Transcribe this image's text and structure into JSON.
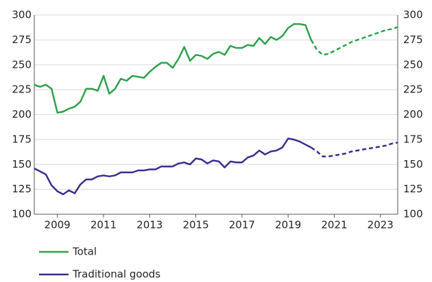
{
  "chart_data": {
    "type": "line",
    "x": [
      2008,
      2008.25,
      2008.5,
      2008.75,
      2009,
      2009.25,
      2009.5,
      2009.75,
      2010,
      2010.25,
      2010.5,
      2010.75,
      2011,
      2011.25,
      2011.5,
      2011.75,
      2012,
      2012.25,
      2012.5,
      2012.75,
      2013,
      2013.25,
      2013.5,
      2013.75,
      2014,
      2014.25,
      2014.5,
      2014.75,
      2015,
      2015.25,
      2015.5,
      2015.75,
      2016,
      2016.25,
      2016.5,
      2016.75,
      2017,
      2017.25,
      2017.5,
      2017.75,
      2018,
      2018.25,
      2018.5,
      2018.75,
      2019,
      2019.25,
      2019.5,
      2019.75,
      2020,
      2020.25,
      2020.5,
      2020.75,
      2021,
      2021.25,
      2021.5,
      2021.75,
      2022,
      2022.25,
      2022.5,
      2022.75,
      2023,
      2023.25,
      2023.5,
      2023.75
    ],
    "series": [
      {
        "name": "Total",
        "color": "#2ca048",
        "values": [
          230,
          228,
          230,
          226,
          202,
          203,
          206,
          208,
          213,
          226,
          226,
          224,
          239,
          221,
          226,
          236,
          234,
          239,
          238,
          237,
          243,
          248,
          252,
          252,
          247,
          256,
          268,
          254,
          260,
          259,
          256,
          261,
          263,
          260,
          269,
          267,
          267,
          270,
          269,
          277,
          271,
          278,
          275,
          279,
          287,
          291,
          291,
          290,
          275,
          265,
          260,
          261,
          264,
          267,
          270,
          273,
          275,
          277,
          279,
          281,
          283,
          285,
          286,
          288
        ]
      },
      {
        "name": "Traditional goods",
        "color": "#3b2a8c",
        "values": [
          146,
          143,
          140,
          129,
          123,
          120,
          124,
          121,
          130,
          135,
          135,
          138,
          139,
          138,
          139,
          142,
          142,
          142,
          144,
          144,
          145,
          145,
          148,
          148,
          148,
          151,
          152,
          150,
          156,
          155,
          151,
          154,
          153,
          147,
          153,
          152,
          152,
          157,
          159,
          164,
          160,
          163,
          164,
          167,
          176,
          175,
          173,
          170,
          167,
          163,
          158,
          158,
          159,
          160,
          161,
          163,
          164,
          165,
          166,
          167,
          168,
          169,
          171,
          172
        ]
      }
    ],
    "dashed_from": 2020,
    "xlim": [
      2008,
      2023.75
    ],
    "xticks": [
      2009,
      2011,
      2013,
      2015,
      2017,
      2019,
      2021,
      2023
    ],
    "ylim": [
      100,
      300
    ],
    "yticks": [
      100,
      125,
      150,
      175,
      200,
      225,
      250,
      275,
      300
    ],
    "grid": true,
    "legend": "bottom"
  }
}
